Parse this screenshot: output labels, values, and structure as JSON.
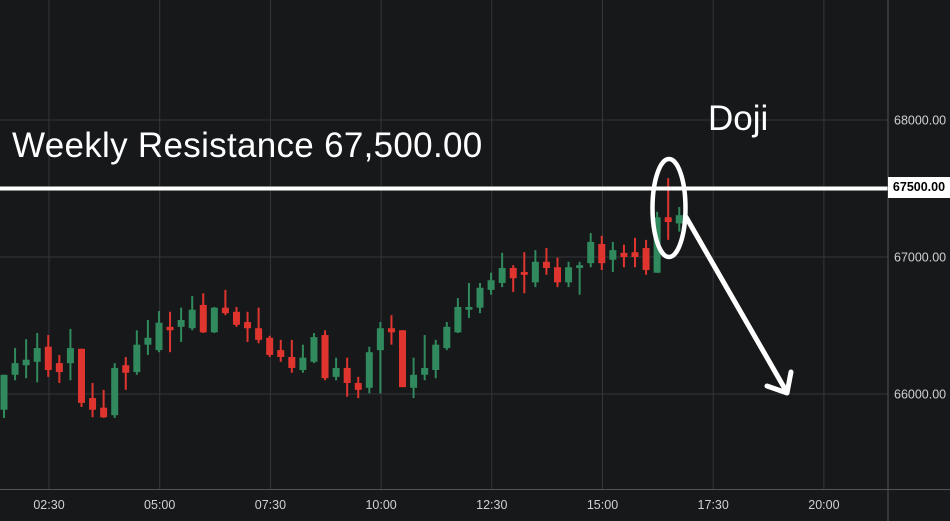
{
  "colors": {
    "background": "#17181a",
    "grid": "#34363b",
    "axis_border": "#50535a",
    "axis_text": "#cfd1d5",
    "candle_up": "#308a5d",
    "candle_down": "#e0352f",
    "annotation": "#ffffff",
    "price_tag_bg": "#ffffff",
    "price_tag_text": "#000000"
  },
  "chart_data": {
    "type": "candlestick",
    "x_tick_labels": [
      "02:30",
      "05:00",
      "07:30",
      "10:00",
      "12:30",
      "15:00",
      "17:30",
      "20:00"
    ],
    "y_tick_labels": [
      "68000.00",
      "67000.00",
      "66000.00"
    ],
    "y_gridline_prices": [
      68000,
      67000,
      66000
    ],
    "visible_price_range": [
      65310,
      68875
    ],
    "grid": "on",
    "candles_ohlc": [
      [
        65885,
        66140,
        65825,
        66140
      ],
      [
        66140,
        66335,
        66100,
        66225
      ],
      [
        66210,
        66400,
        66115,
        66250
      ],
      [
        66235,
        66445,
        66085,
        66335
      ],
      [
        66345,
        66430,
        66125,
        66175
      ],
      [
        66225,
        66285,
        66080,
        66160
      ],
      [
        66225,
        66475,
        66100,
        66335
      ],
      [
        66330,
        66330,
        65905,
        65935
      ],
      [
        65970,
        66080,
        65830,
        65885
      ],
      [
        65900,
        66030,
        65825,
        65830
      ],
      [
        65845,
        66225,
        65825,
        66190
      ],
      [
        66210,
        66270,
        66030,
        66155
      ],
      [
        66160,
        66465,
        66140,
        66360
      ],
      [
        66360,
        66540,
        66285,
        66410
      ],
      [
        66320,
        66605,
        66305,
        66520
      ],
      [
        66490,
        66600,
        66305,
        66465
      ],
      [
        66490,
        66630,
        66380,
        66540
      ],
      [
        66480,
        66715,
        66465,
        66615
      ],
      [
        66650,
        66735,
        66445,
        66450
      ],
      [
        66450,
        66635,
        66445,
        66630
      ],
      [
        66630,
        66760,
        66575,
        66590
      ],
      [
        66600,
        66635,
        66490,
        66505
      ],
      [
        66525,
        66600,
        66380,
        66480
      ],
      [
        66480,
        66630,
        66370,
        66395
      ],
      [
        66410,
        66425,
        66270,
        66285
      ],
      [
        66320,
        66395,
        66235,
        66270
      ],
      [
        66270,
        66395,
        66155,
        66190
      ],
      [
        66175,
        66360,
        66155,
        66265
      ],
      [
        66235,
        66445,
        66225,
        66415
      ],
      [
        66430,
        66465,
        66100,
        66115
      ],
      [
        66125,
        66265,
        66100,
        66190
      ],
      [
        66190,
        66265,
        65980,
        66080
      ],
      [
        66080,
        66125,
        65970,
        66030
      ],
      [
        66045,
        66345,
        66005,
        66305
      ],
      [
        66320,
        66525,
        66005,
        66480
      ],
      [
        66480,
        66575,
        66360,
        66450
      ],
      [
        66465,
        66465,
        66050,
        66050
      ],
      [
        66045,
        66265,
        65970,
        66140
      ],
      [
        66140,
        66430,
        66100,
        66190
      ],
      [
        66175,
        66395,
        66115,
        66360
      ],
      [
        66335,
        66525,
        66320,
        66490
      ],
      [
        66450,
        66700,
        66445,
        66635
      ],
      [
        66615,
        66810,
        66555,
        66635
      ],
      [
        66630,
        66810,
        66590,
        66775
      ],
      [
        66760,
        66885,
        66725,
        66830
      ],
      [
        66810,
        67030,
        66780,
        66920
      ],
      [
        66920,
        66940,
        66745,
        66845
      ],
      [
        66890,
        67035,
        66735,
        66870
      ],
      [
        66815,
        67050,
        66780,
        66965
      ],
      [
        66965,
        67065,
        66870,
        66920
      ],
      [
        66925,
        66995,
        66780,
        66815
      ],
      [
        66815,
        66965,
        66780,
        66925
      ],
      [
        66920,
        66965,
        66725,
        66940
      ],
      [
        66955,
        67175,
        66925,
        67110
      ],
      [
        67095,
        67155,
        66905,
        66955
      ],
      [
        66980,
        67110,
        66890,
        67050
      ],
      [
        67030,
        67090,
        66925,
        67000
      ],
      [
        67035,
        67140,
        66925,
        67000
      ],
      [
        67065,
        67125,
        66870,
        66905
      ],
      [
        66885,
        67330,
        66885,
        67290
      ],
      [
        67290,
        67575,
        67125,
        67255
      ],
      [
        67245,
        67365,
        67185,
        67305
      ]
    ],
    "annotations": {
      "resistance_label": "Weekly Resistance 67,500.00",
      "resistance_price": 67500,
      "price_tag": "67500.00",
      "doji_label": "Doji",
      "highlight_shape": "ellipse-around-doji-candle",
      "arrow_direction": "down-right"
    }
  }
}
